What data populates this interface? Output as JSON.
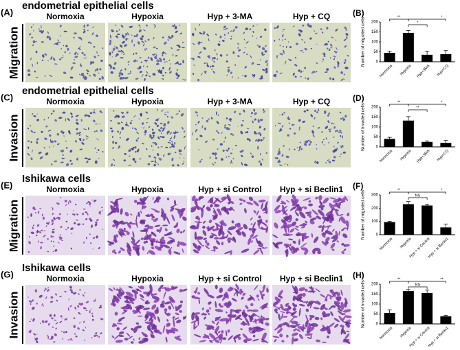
{
  "panels": [
    {
      "label": "(A)",
      "title": "endometrial epithelial cells",
      "side_label": "Migration",
      "columns": [
        "Normoxia",
        "Hypoxia",
        "Hyp + 3-MA",
        "Hyp + CQ"
      ]
    },
    {
      "label": "(C)",
      "title": "endometrial epithelial cells",
      "side_label": "Invasion",
      "columns": [
        "Normoxia",
        "Hypoxia",
        "Hyp + 3-MA",
        "Hyp + CQ"
      ]
    },
    {
      "label": "(E)",
      "title": "Ishikawa cells",
      "side_label": "Migration",
      "columns": [
        "Normoxia",
        "Hypoxia",
        "Hyp + si Control",
        "Hyp + si Beclin1"
      ]
    },
    {
      "label": "(G)",
      "title": "Ishikawa cells",
      "side_label": "Invasion",
      "columns": [
        "Normoxia",
        "Hypoxia",
        "Hyp + si Control",
        "Hyp + si Beclin1"
      ]
    }
  ],
  "chart_data": [
    {
      "type": "bar",
      "title": "(B)",
      "y_label": "Number of migrated cells",
      "categories": [
        "Normoxia",
        "Hypoxia",
        "Hyp+3MA",
        "Hyp+CQ"
      ],
      "values": [
        45,
        145,
        35,
        38
      ],
      "errors": [
        8,
        12,
        18,
        18
      ],
      "color": "#000000",
      "ylim": [
        0,
        200
      ],
      "yticks": [
        0,
        50,
        100,
        150,
        200
      ],
      "significance": [
        "**",
        "*",
        "*"
      ]
    },
    {
      "type": "bar",
      "title": "(D)",
      "y_label": "Number of invaded cells",
      "categories": [
        "Normoxia",
        "Hypoxia",
        "Hyp+3MA",
        "Hyp+CQ"
      ],
      "values": [
        40,
        132,
        25,
        20
      ],
      "errors": [
        8,
        20,
        5,
        12
      ],
      "color": "#000000",
      "ylim": [
        0,
        200
      ],
      "yticks": [
        0,
        50,
        100,
        150,
        200
      ],
      "significance": [
        "**",
        "**",
        "*"
      ]
    },
    {
      "type": "bar",
      "title": "(F)",
      "y_label": "Number of migrated cells",
      "categories": [
        "Normoxia",
        "Hypoxia",
        "Hyp + si Control",
        "Hyp + si Beclin1"
      ],
      "values": [
        95,
        230,
        220,
        55
      ],
      "errors": [
        5,
        20,
        10,
        25
      ],
      "color": "#000000",
      "ylim": [
        0,
        300
      ],
      "yticks": [
        0,
        100,
        200,
        300
      ],
      "significance": [
        "**",
        "NS",
        "*"
      ]
    },
    {
      "type": "bar",
      "title": "(H)",
      "y_label": "Number of invaded cells",
      "categories": [
        "Normoxia",
        "Hypoxia",
        "Hyp + si Control",
        "Hyp + si Beclin1"
      ],
      "values": [
        55,
        165,
        155,
        38
      ],
      "errors": [
        15,
        8,
        15,
        5
      ],
      "color": "#000000",
      "ylim": [
        0,
        200
      ],
      "yticks": [
        0,
        50,
        100,
        150,
        200
      ],
      "significance": [
        "**",
        "NS",
        "**"
      ]
    }
  ]
}
